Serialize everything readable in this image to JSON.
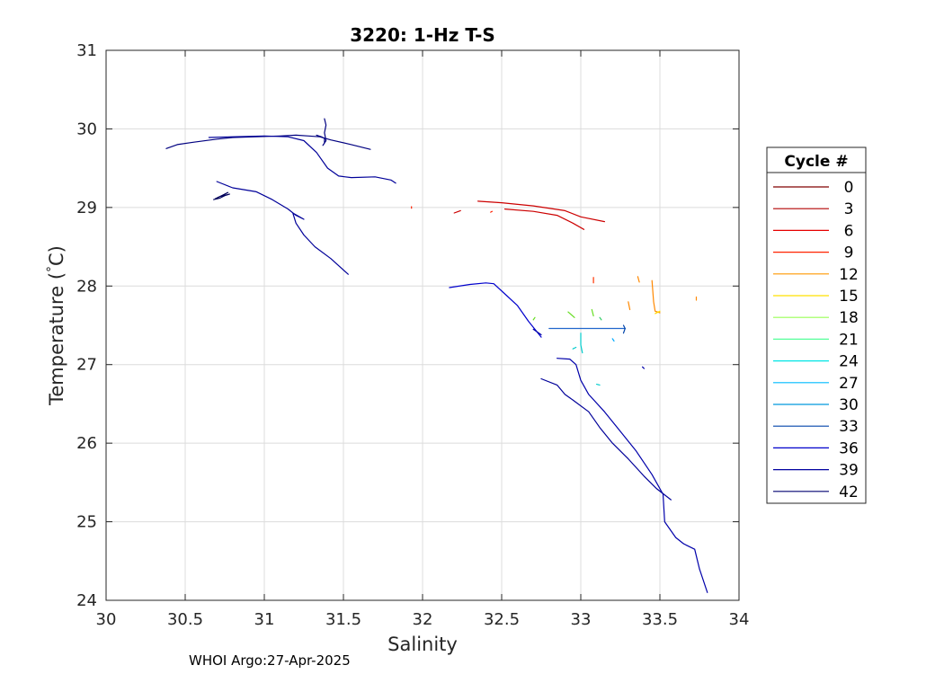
{
  "chart_data": {
    "type": "line",
    "title": "3220: 1-Hz T-S",
    "xlabel": "Salinity",
    "ylabel": "Temperature ( C)",
    "ylabel_main": "Temperature (",
    "ylabel_degree": "°",
    "ylabel_unit": "C)",
    "xlim": [
      30,
      34
    ],
    "ylim": [
      24,
      31
    ],
    "xticks": [
      "30",
      "30.5",
      "31",
      "31.5",
      "32",
      "32.5",
      "33",
      "33.5",
      "34"
    ],
    "yticks": [
      "24",
      "25",
      "26",
      "27",
      "28",
      "29",
      "30",
      "31"
    ],
    "grid": true,
    "legend_title": "Cycle #",
    "legend_placement": "outside-right",
    "legend_labels": [
      "0",
      "3",
      "6",
      "9",
      "12",
      "15",
      "18",
      "21",
      "24",
      "27",
      "30",
      "33",
      "36",
      "39",
      "42"
    ],
    "legend_colors": [
      "#800000",
      "#b30000",
      "#e60000",
      "#ff2200",
      "#ff9900",
      "#ffe000",
      "#99ff55",
      "#55ff99",
      "#00e6e6",
      "#00bbff",
      "#0099dd",
      "#0044aa",
      "#0000cc",
      "#0000a0",
      "#000070"
    ],
    "footer": "WHOI Argo:27-Apr-2025",
    "series": [
      {
        "color": "#000080",
        "points": [
          [
            30.38,
            29.75
          ],
          [
            30.45,
            29.8
          ],
          [
            30.55,
            29.83
          ],
          [
            30.7,
            29.87
          ],
          [
            30.8,
            29.89
          ],
          [
            30.95,
            29.9
          ],
          [
            31.1,
            29.91
          ],
          [
            31.2,
            29.92
          ],
          [
            31.28,
            29.91
          ],
          [
            31.35,
            29.9
          ],
          [
            31.42,
            29.86
          ],
          [
            31.55,
            29.8
          ],
          [
            31.67,
            29.74
          ]
        ]
      },
      {
        "color": "#000080",
        "points": [
          [
            31.33,
            29.92
          ],
          [
            31.36,
            29.9
          ],
          [
            31.38,
            29.88
          ],
          [
            31.38,
            29.82
          ],
          [
            31.37,
            29.79
          ],
          [
            31.39,
            29.85
          ],
          [
            31.38,
            29.95
          ],
          [
            31.39,
            30.05
          ],
          [
            31.38,
            30.13
          ]
        ]
      },
      {
        "color": "#000099",
        "points": [
          [
            30.65,
            29.89
          ],
          [
            30.8,
            29.9
          ],
          [
            31.0,
            29.91
          ],
          [
            31.15,
            29.9
          ],
          [
            31.25,
            29.85
          ],
          [
            31.33,
            29.7
          ],
          [
            31.4,
            29.5
          ],
          [
            31.47,
            29.4
          ],
          [
            31.55,
            29.38
          ],
          [
            31.7,
            29.39
          ],
          [
            31.8,
            29.35
          ],
          [
            31.83,
            29.31
          ]
        ]
      },
      {
        "color": "#000099",
        "points": [
          [
            30.7,
            29.33
          ],
          [
            30.8,
            29.25
          ],
          [
            30.95,
            29.2
          ],
          [
            31.05,
            29.1
          ],
          [
            31.15,
            28.98
          ],
          [
            31.2,
            28.9
          ],
          [
            31.25,
            28.85
          ],
          [
            31.18,
            28.93
          ],
          [
            31.2,
            28.8
          ],
          [
            31.25,
            28.65
          ],
          [
            31.32,
            28.5
          ],
          [
            31.42,
            28.35
          ],
          [
            31.53,
            28.15
          ]
        ]
      },
      {
        "color": "#00005a",
        "points": [
          [
            30.68,
            29.1
          ],
          [
            30.72,
            29.12
          ],
          [
            30.75,
            29.15
          ],
          [
            30.78,
            29.17
          ],
          [
            30.72,
            29.14
          ],
          [
            30.69,
            29.11
          ],
          [
            30.74,
            29.16
          ],
          [
            30.77,
            29.19
          ]
        ]
      },
      {
        "color": "#cc0000",
        "points": [
          [
            32.35,
            29.08
          ],
          [
            32.5,
            29.06
          ],
          [
            32.7,
            29.02
          ],
          [
            32.9,
            28.96
          ],
          [
            33.0,
            28.88
          ],
          [
            33.15,
            28.82
          ]
        ]
      },
      {
        "color": "#cc0000",
        "points": [
          [
            32.52,
            28.98
          ],
          [
            32.7,
            28.95
          ],
          [
            32.85,
            28.9
          ],
          [
            32.95,
            28.8
          ],
          [
            33.02,
            28.72
          ]
        ]
      },
      {
        "color": "#cc0000",
        "points": [
          [
            32.2,
            28.93
          ],
          [
            32.24,
            28.96
          ]
        ]
      },
      {
        "color": "#ff2000",
        "points": [
          [
            31.93,
            28.99
          ],
          [
            31.93,
            29.01
          ]
        ]
      },
      {
        "color": "#ff2000",
        "points": [
          [
            32.43,
            28.94
          ],
          [
            32.44,
            28.95
          ]
        ]
      },
      {
        "color": "#ff8800",
        "points": [
          [
            33.45,
            28.07
          ],
          [
            33.46,
            27.8
          ],
          [
            33.47,
            27.68
          ],
          [
            33.5,
            27.66
          ]
        ]
      },
      {
        "color": "#ff8800",
        "points": [
          [
            33.36,
            28.12
          ],
          [
            33.37,
            28.05
          ]
        ]
      },
      {
        "color": "#ff8800",
        "points": [
          [
            33.3,
            27.8
          ],
          [
            33.31,
            27.7
          ]
        ]
      },
      {
        "color": "#ff8800",
        "points": [
          [
            33.73,
            27.86
          ],
          [
            33.73,
            27.82
          ]
        ]
      },
      {
        "color": "#ff3300",
        "points": [
          [
            33.08,
            28.11
          ],
          [
            33.08,
            28.04
          ]
        ]
      },
      {
        "color": "#ffdd00",
        "points": [
          [
            33.47,
            27.65
          ],
          [
            33.5,
            27.68
          ]
        ]
      },
      {
        "color": "#66dd22",
        "points": [
          [
            32.92,
            27.67
          ],
          [
            32.96,
            27.6
          ]
        ]
      },
      {
        "color": "#66dd22",
        "points": [
          [
            33.07,
            27.7
          ],
          [
            33.08,
            27.62
          ]
        ]
      },
      {
        "color": "#66dd22",
        "points": [
          [
            32.7,
            27.57
          ],
          [
            32.71,
            27.6
          ]
        ]
      },
      {
        "color": "#33cc66",
        "points": [
          [
            33.12,
            27.6
          ],
          [
            33.13,
            27.57
          ]
        ]
      },
      {
        "color": "#00cccc",
        "points": [
          [
            33.0,
            27.4
          ],
          [
            33.0,
            27.25
          ],
          [
            33.01,
            27.15
          ]
        ]
      },
      {
        "color": "#00cccc",
        "points": [
          [
            32.95,
            27.2
          ],
          [
            32.97,
            27.22
          ]
        ]
      },
      {
        "color": "#00cccc",
        "points": [
          [
            33.1,
            26.75
          ],
          [
            33.12,
            26.74
          ]
        ]
      },
      {
        "color": "#00aaff",
        "points": [
          [
            33.2,
            27.33
          ],
          [
            33.21,
            27.3
          ]
        ]
      },
      {
        "color": "#2266cc",
        "points": [
          [
            32.8,
            27.46
          ],
          [
            33.0,
            27.46
          ],
          [
            33.2,
            27.46
          ],
          [
            33.28,
            27.46
          ]
        ]
      },
      {
        "color": "#0044aa",
        "points": [
          [
            33.27,
            27.5
          ],
          [
            33.28,
            27.46
          ],
          [
            33.27,
            27.4
          ]
        ]
      },
      {
        "color": "#0000cc",
        "points": [
          [
            32.17,
            27.98
          ],
          [
            32.3,
            28.02
          ],
          [
            32.4,
            28.04
          ],
          [
            32.45,
            28.03
          ],
          [
            32.52,
            27.9
          ],
          [
            32.6,
            27.75
          ],
          [
            32.67,
            27.55
          ],
          [
            32.75,
            27.35
          ]
        ]
      },
      {
        "color": "#0000aa",
        "points": [
          [
            32.75,
            27.38
          ],
          [
            32.7,
            27.45
          ]
        ]
      },
      {
        "color": "#0000aa",
        "points": [
          [
            32.85,
            27.08
          ],
          [
            32.93,
            27.07
          ],
          [
            32.97,
            27.0
          ],
          [
            33.0,
            26.8
          ],
          [
            33.05,
            26.62
          ],
          [
            33.15,
            26.4
          ],
          [
            33.25,
            26.15
          ],
          [
            33.35,
            25.9
          ],
          [
            33.45,
            25.6
          ],
          [
            33.52,
            25.35
          ],
          [
            33.53,
            25.0
          ],
          [
            33.6,
            24.8
          ],
          [
            33.65,
            24.72
          ],
          [
            33.72,
            24.65
          ],
          [
            33.75,
            24.4
          ],
          [
            33.8,
            24.1
          ]
        ]
      },
      {
        "color": "#000099",
        "points": [
          [
            32.75,
            26.82
          ],
          [
            32.85,
            26.74
          ],
          [
            32.9,
            26.62
          ],
          [
            32.95,
            26.55
          ],
          [
            33.05,
            26.4
          ],
          [
            33.12,
            26.2
          ],
          [
            33.2,
            26.0
          ],
          [
            33.3,
            25.8
          ],
          [
            33.4,
            25.58
          ],
          [
            33.48,
            25.42
          ],
          [
            33.57,
            25.28
          ]
        ]
      },
      {
        "color": "#0000aa",
        "points": [
          [
            33.39,
            26.97
          ],
          [
            33.4,
            26.95
          ]
        ]
      }
    ]
  }
}
